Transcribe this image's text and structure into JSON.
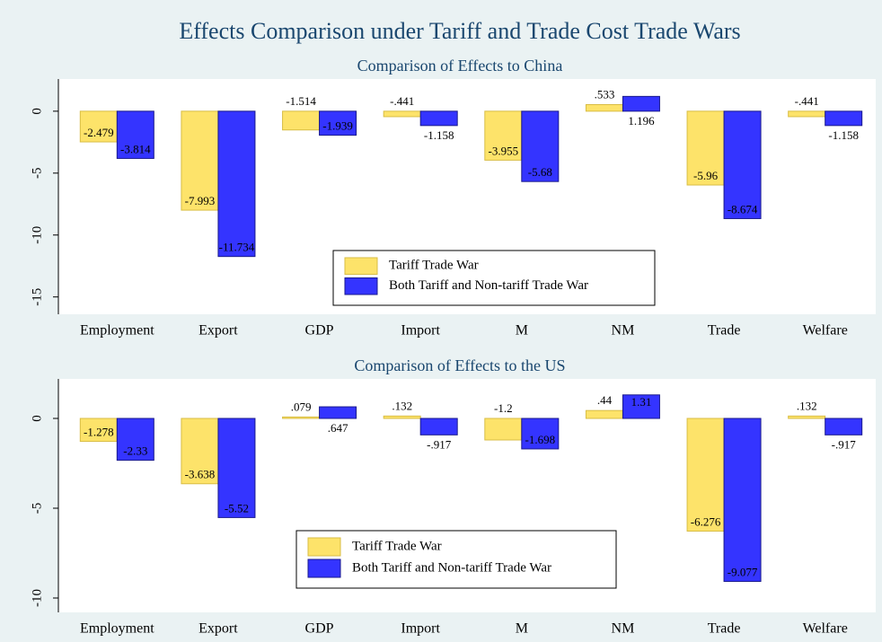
{
  "title": "Effects Comparison under Tariff and Trade Cost Trade Wars",
  "chart_data": [
    {
      "type": "bar",
      "title": "Comparison of Effects to China",
      "categories": [
        "Employment",
        "Export",
        "GDP",
        "Import",
        "M",
        "NM",
        "Trade",
        "Welfare"
      ],
      "series": [
        {
          "name": "Tariff Trade War",
          "color": "#fde36a",
          "values": [
            -2.479,
            -7.993,
            -1.514,
            -0.441,
            -3.955,
            0.533,
            -5.96,
            -0.441
          ],
          "value_labels": [
            "-2.479",
            "-7.993",
            "-1.514",
            "-.441",
            "-3.955",
            ".533",
            "-5.96",
            "-.441"
          ]
        },
        {
          "name": "Both Tariff and Non-tariff Trade War",
          "color": "#3434ff",
          "values": [
            -3.814,
            -11.734,
            -1.939,
            -1.158,
            -5.68,
            1.196,
            -8.674,
            -1.158
          ],
          "value_labels": [
            "-3.814",
            "-11.734",
            "-1.939",
            "-1.158",
            "-5.68",
            "1.196",
            "-8.674",
            "-1.158"
          ]
        }
      ],
      "ylim": [
        -16.4,
        2.6
      ],
      "yticks": [
        0,
        -5,
        -10,
        -15
      ]
    },
    {
      "type": "bar",
      "title": "Comparison of Effects to the US",
      "categories": [
        "Employment",
        "Export",
        "GDP",
        "Import",
        "M",
        "NM",
        "Trade",
        "Welfare"
      ],
      "series": [
        {
          "name": "Tariff Trade War",
          "color": "#fde36a",
          "values": [
            -1.278,
            -3.638,
            0.079,
            0.132,
            -1.2,
            0.44,
            -6.276,
            0.132
          ],
          "value_labels": [
            "-1.278",
            "-3.638",
            ".079",
            ".132",
            "-1.2",
            ".44",
            "-6.276",
            ".132"
          ]
        },
        {
          "name": "Both Tariff and Non-tariff Trade War",
          "color": "#3434ff",
          "values": [
            -2.33,
            -5.52,
            0.647,
            -0.917,
            -1.698,
            1.31,
            -9.077,
            -0.917
          ],
          "value_labels": [
            "-2.33",
            "-5.52",
            ".647",
            "-.917",
            "-1.698",
            "1.31",
            "-9.077",
            "-.917"
          ]
        }
      ],
      "ylim": [
        -10.8,
        2.2
      ],
      "yticks": [
        0,
        -5,
        -10
      ]
    }
  ]
}
